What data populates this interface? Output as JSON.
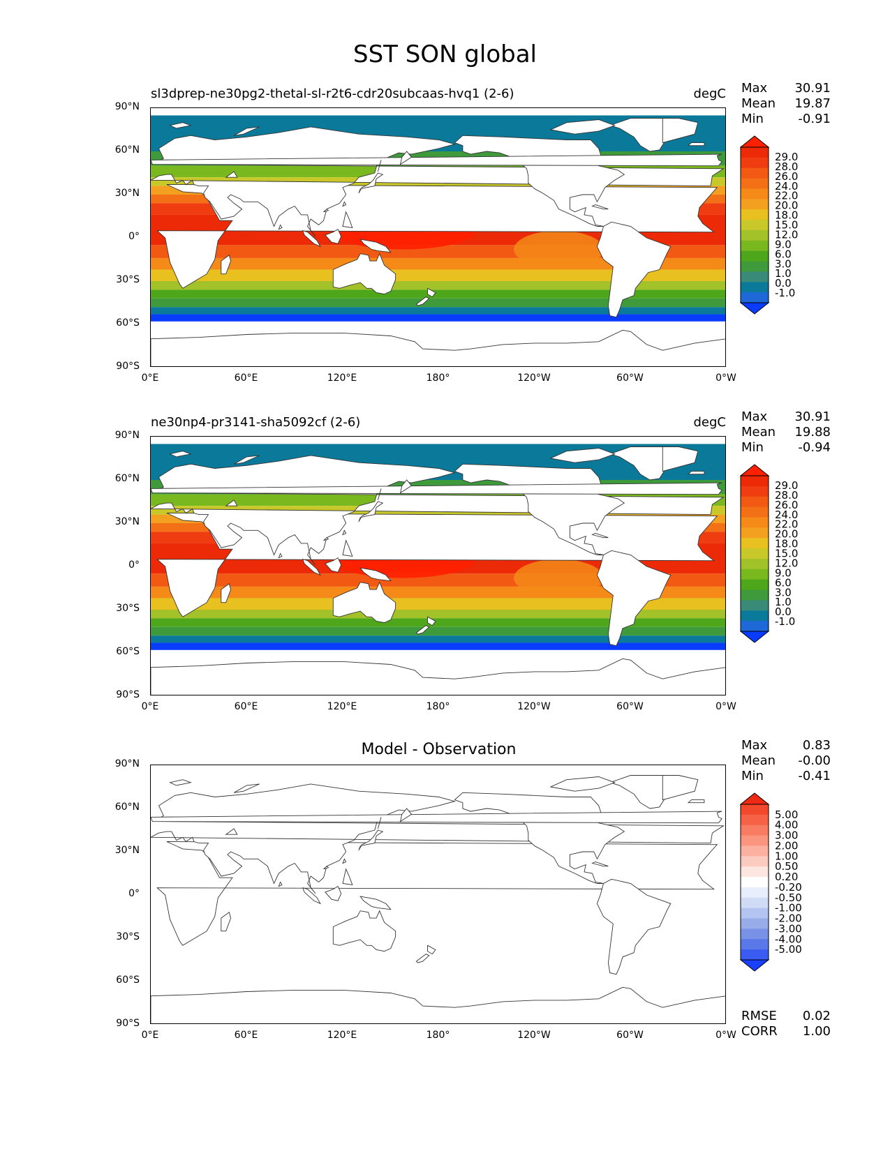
{
  "figure": {
    "title": "SST SON global"
  },
  "colors": {
    "sst_scale": [
      "#0a3cff",
      "#1e68d8",
      "#0b7a9a",
      "#3a8a78",
      "#3e9a3a",
      "#4ea61a",
      "#7ab820",
      "#a3c22a",
      "#c8c82a",
      "#e8c020",
      "#f3a020",
      "#f58a18",
      "#f47016",
      "#f25a14",
      "#ef3c10",
      "#ec2a08",
      "#ff2000"
    ],
    "diff_scale": [
      "#1a40ff",
      "#3a5cf2",
      "#5a78e8",
      "#7a92e6",
      "#98acea",
      "#b4c4f0",
      "#d0dcf6",
      "#e8eefb",
      "#ffffff",
      "#fde6e0",
      "#fccbc0",
      "#fbb0a0",
      "#fa9680",
      "#f87c62",
      "#f56246",
      "#f2482c",
      "#ef2a14"
    ]
  },
  "chart_data": [
    {
      "type": "heatmap",
      "subtitle": "sl3dprep-ne30pg2-thetal-sl-r2t6-cdr20subcaas-hvq1 (2-6)",
      "units": "degC",
      "stats": [
        {
          "label": "Max",
          "value": "30.91"
        },
        {
          "label": "Mean",
          "value": "19.87"
        },
        {
          "label": "Min",
          "value": "-0.91"
        }
      ],
      "colorbar_levels": [
        "29.0",
        "28.0",
        "26.0",
        "24.0",
        "22.0",
        "20.0",
        "18.0",
        "15.0",
        "12.0",
        "9.0",
        "6.0",
        "3.0",
        "1.0",
        "0.0",
        "-1.0"
      ],
      "yticks": [
        "90°N",
        "60°N",
        "30°N",
        "0°",
        "30°S",
        "60°S",
        "90°S"
      ],
      "xticks": [
        "0°E",
        "60°E",
        "120°E",
        "180°",
        "120°W",
        "60°W",
        "0°W"
      ],
      "xlim": [
        0,
        360
      ],
      "ylim": [
        -90,
        90
      ]
    },
    {
      "type": "heatmap",
      "subtitle": "ne30np4-pr3141-sha5092cf (2-6)",
      "units": "degC",
      "stats": [
        {
          "label": "Max",
          "value": "30.91"
        },
        {
          "label": "Mean",
          "value": "19.88"
        },
        {
          "label": "Min",
          "value": "-0.94"
        }
      ],
      "colorbar_levels": [
        "29.0",
        "28.0",
        "26.0",
        "24.0",
        "22.0",
        "20.0",
        "18.0",
        "15.0",
        "12.0",
        "9.0",
        "6.0",
        "3.0",
        "1.0",
        "0.0",
        "-1.0"
      ],
      "yticks": [
        "90°N",
        "60°N",
        "30°N",
        "0°",
        "30°S",
        "60°S",
        "90°S"
      ],
      "xticks": [
        "0°E",
        "60°E",
        "120°E",
        "180°",
        "120°W",
        "60°W",
        "0°W"
      ],
      "xlim": [
        0,
        360
      ],
      "ylim": [
        -90,
        90
      ]
    },
    {
      "type": "heatmap",
      "title": "Model - Observation",
      "stats": [
        {
          "label": "Max",
          "value": "0.83"
        },
        {
          "label": "Mean",
          "value": "-0.00"
        },
        {
          "label": "Min",
          "value": "-0.41"
        }
      ],
      "colorbar_levels": [
        "5.00",
        "4.00",
        "3.00",
        "2.00",
        "1.00",
        "0.50",
        "0.20",
        "-0.20",
        "-0.50",
        "-1.00",
        "-2.00",
        "-3.00",
        "-4.00",
        "-5.00"
      ],
      "metrics": [
        {
          "label": "RMSE",
          "value": "0.02"
        },
        {
          "label": "CORR",
          "value": "1.00"
        }
      ],
      "yticks": [
        "90°N",
        "60°N",
        "30°N",
        "0°",
        "30°S",
        "60°S",
        "90°S"
      ],
      "xticks": [
        "0°E",
        "60°E",
        "120°E",
        "180°",
        "120°W",
        "60°W",
        "0°W"
      ],
      "xlim": [
        0,
        360
      ],
      "ylim": [
        -90,
        90
      ]
    }
  ]
}
